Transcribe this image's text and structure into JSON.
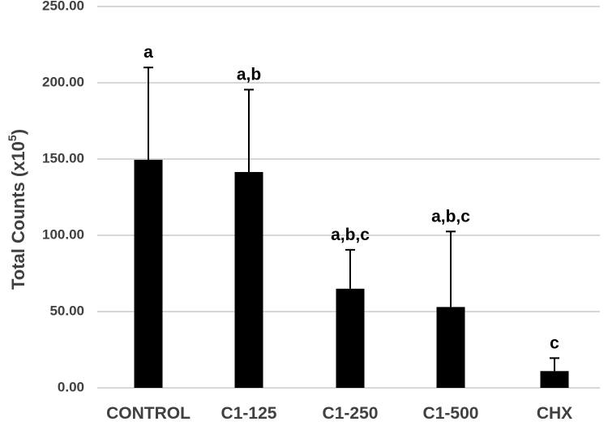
{
  "chart_data": {
    "type": "bar",
    "title": "",
    "xlabel": "",
    "ylabel": "Total  Counts (x10",
    "ylabel_superscript": "5",
    "ylabel_suffix": ")",
    "ylim": [
      0,
      250
    ],
    "yticks": [
      "0.00",
      "50.00",
      "100.00",
      "150.00",
      "200.00",
      "250.00"
    ],
    "grid": true,
    "categories": [
      "CONTROL",
      "C1-125",
      "C1-250",
      "C1-500",
      "CHX"
    ],
    "values": [
      149.5,
      141.5,
      65,
      53,
      11
    ],
    "errors": [
      60.5,
      54,
      25.5,
      49.5,
      8.5
    ],
    "significance_labels": [
      "a",
      "a,b",
      "a,b,c",
      "a,b,c",
      "c"
    ],
    "colors": {
      "bar": "#000000",
      "grid": "#bfbfbf",
      "text": "#404040"
    }
  }
}
